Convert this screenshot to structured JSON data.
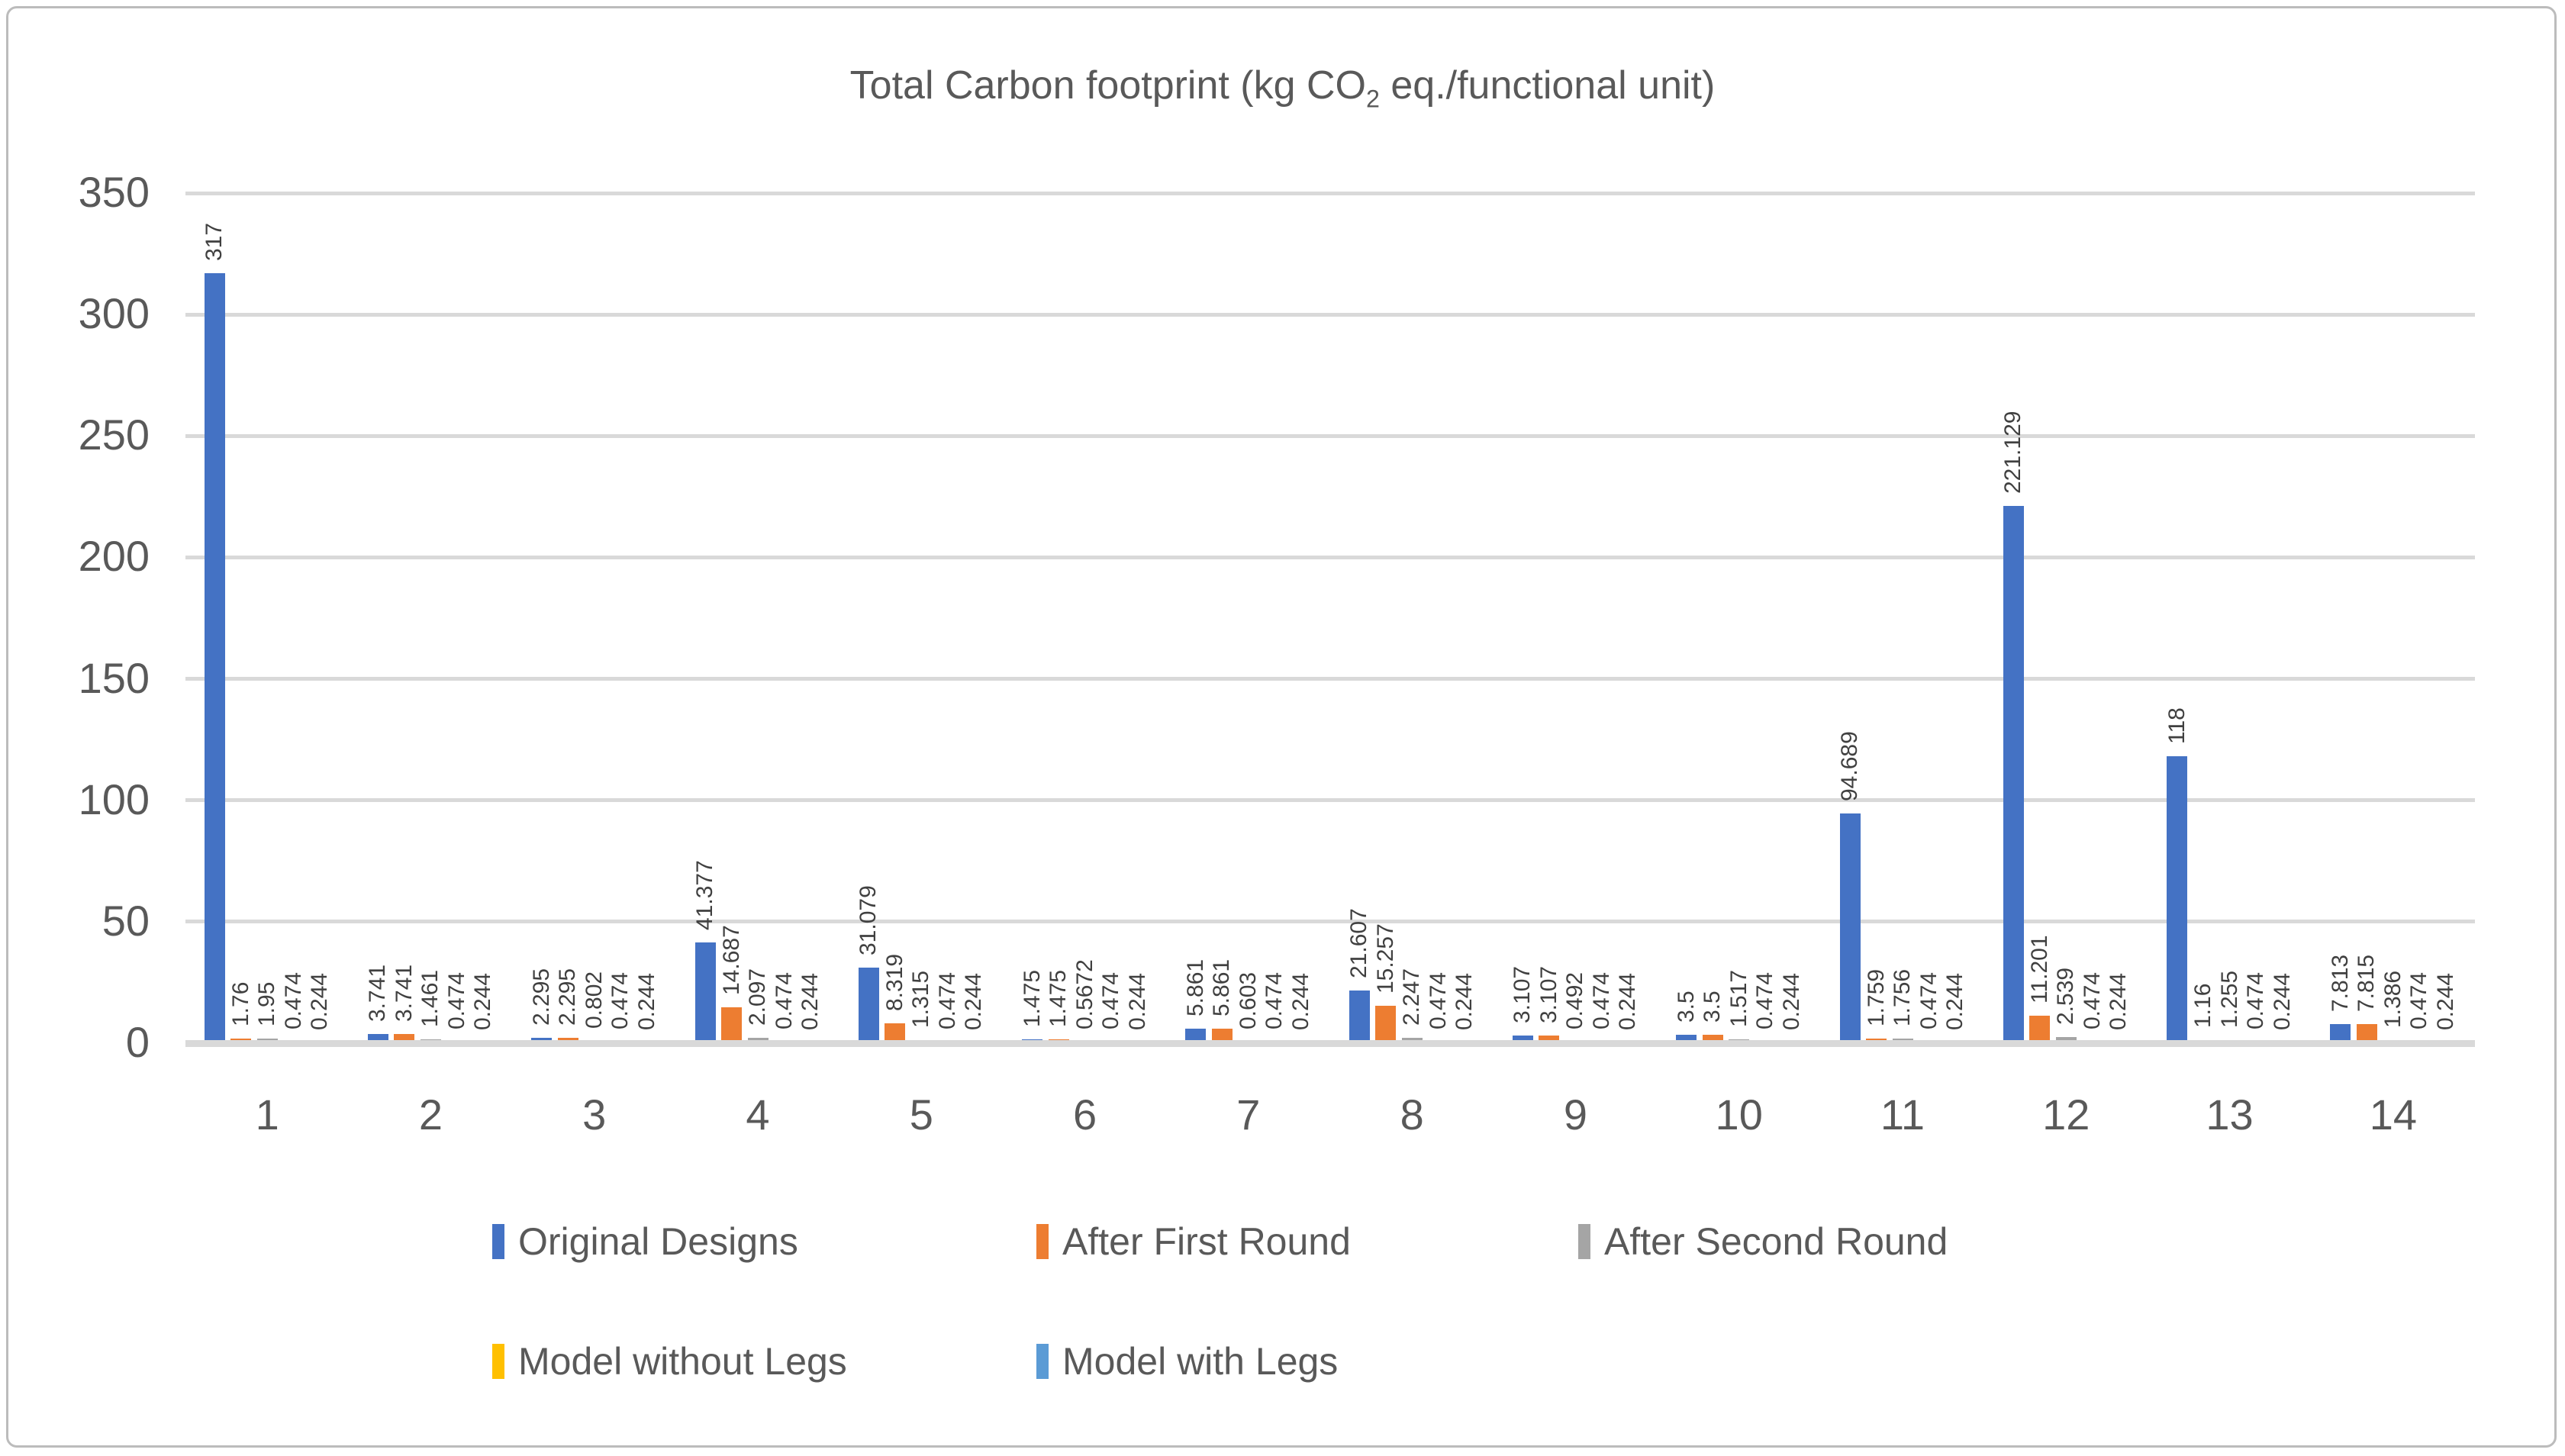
{
  "chart_data": {
    "type": "bar",
    "title": "Total Carbon footprint (kg CO2 eq./functional unit)",
    "title_rich": {
      "pre": "Total Carbon footprint (kg CO",
      "sub": "2",
      "post": " eq./functional unit)"
    },
    "categories": [
      "1",
      "2",
      "3",
      "4",
      "5",
      "6",
      "7",
      "8",
      "9",
      "10",
      "11",
      "12",
      "13",
      "14"
    ],
    "series": [
      {
        "name": "Original Designs",
        "color": "#4472C4",
        "values": [
          317,
          3.741,
          2.295,
          41.377,
          31.079,
          1.475,
          5.861,
          21.607,
          3.107,
          3.5,
          94.689,
          221.129,
          118,
          7.813
        ]
      },
      {
        "name": "After First Round",
        "color": "#ED7D31",
        "values": [
          1.76,
          3.741,
          2.295,
          14.687,
          8.319,
          1.475,
          5.861,
          15.257,
          3.107,
          3.5,
          1.759,
          11.201,
          1.16,
          7.815
        ]
      },
      {
        "name": "After Second Round",
        "color": "#A5A5A5",
        "values": [
          1.95,
          1.461,
          0.802,
          2.097,
          1.315,
          0.5672,
          0.603,
          2.247,
          0.492,
          1.517,
          1.756,
          2.539,
          1.255,
          1.386
        ]
      },
      {
        "name": "Model without Legs",
        "color": "#FFC000",
        "values": [
          0.474,
          0.474,
          0.474,
          0.474,
          0.474,
          0.474,
          0.474,
          0.474,
          0.474,
          0.474,
          0.474,
          0.474,
          0.474,
          0.474
        ]
      },
      {
        "name": "Model with Legs",
        "color": "#5B9BD5",
        "values": [
          0.244,
          0.244,
          0.244,
          0.244,
          0.244,
          0.244,
          0.244,
          0.244,
          0.244,
          0.244,
          0.244,
          0.244,
          0.244,
          0.244
        ]
      }
    ],
    "yticks": [
      0,
      50,
      100,
      150,
      200,
      250,
      300,
      350
    ],
    "ylim": [
      0,
      350
    ],
    "grid": true,
    "data_labels": "rotated-vertical-above-bars",
    "legend_position": "bottom",
    "colors": {
      "axis_text": "#595959",
      "gridline": "#D9D9D9",
      "data_label_text": "#404040",
      "frame_border": "#BCBCBC"
    }
  }
}
